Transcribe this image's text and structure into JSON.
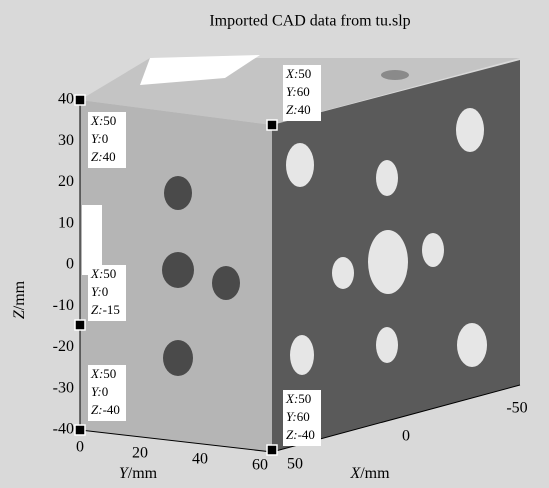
{
  "title": "Imported CAD data from tu.slp",
  "z_axis": {
    "var": "Z",
    "unit": "/mm",
    "ticks": [
      40,
      30,
      20,
      10,
      0,
      -10,
      -20,
      -30,
      -40
    ]
  },
  "y_axis": {
    "var": "Y",
    "unit": "/mm",
    "ticks": [
      0,
      20,
      40,
      60
    ]
  },
  "x_axis": {
    "var": "X",
    "unit": "/mm",
    "ticks": [
      50,
      0,
      -50
    ]
  },
  "datatips": [
    [
      {
        "label": "X:",
        "value": 50
      },
      {
        "label": "Y:",
        "value": 60
      },
      {
        "label": "Z:",
        "value": 40
      }
    ],
    [
      {
        "label": "X:",
        "value": 50
      },
      {
        "label": "Y:",
        "value": 0
      },
      {
        "label": "Z:",
        "value": 40
      }
    ],
    [
      {
        "label": "X:",
        "value": 50
      },
      {
        "label": "Y:",
        "value": 0
      },
      {
        "label": "Z:",
        "value": -15
      }
    ],
    [
      {
        "label": "X:",
        "value": 50
      },
      {
        "label": "Y:",
        "value": 0
      },
      {
        "label": "Z:",
        "value": -40
      }
    ],
    [
      {
        "label": "X:",
        "value": 50
      },
      {
        "label": "Y:",
        "value": 60
      },
      {
        "label": "Z:",
        "value": -40
      }
    ]
  ]
}
